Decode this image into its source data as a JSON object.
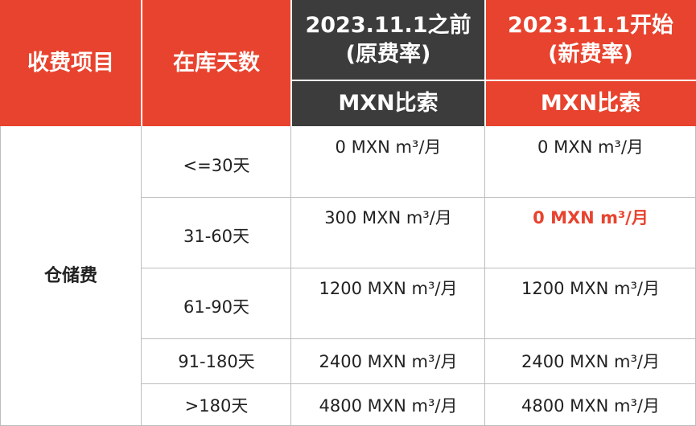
{
  "header": {
    "fee_item": "收费项目",
    "days_in_stock": "在库天数",
    "old_rate_date": "2023.11.1之前",
    "old_rate_label": "(原费率)",
    "old_rate_unit": "MXN比索",
    "new_rate_date": "2023.11.1开始",
    "new_rate_label": "(新费率)",
    "new_rate_unit": "MXN比索"
  },
  "fee_item_name": "仓储费",
  "rows": [
    {
      "days": "<=30天",
      "old": "0 MXN m³/月",
      "new": "0 MXN m³/月"
    },
    {
      "days": "31-60天",
      "old": "300 MXN m³/月",
      "new": "0 MXN m³/月"
    },
    {
      "days": "61-90天",
      "old": "1200 MXN m³/月",
      "new": "1200 MXN m³/月"
    },
    {
      "days": "91-180天",
      "old": "2400 MXN m³/月",
      "new": "2400 MXN m³/月"
    },
    {
      "days": ">180天",
      "old": "4800 MXN m³/月",
      "new": "4800 MXN m³/月"
    }
  ],
  "colors": {
    "header_red": "#e8432e",
    "header_dark": "#3c3c3c",
    "highlight_red": "#e8432e"
  }
}
